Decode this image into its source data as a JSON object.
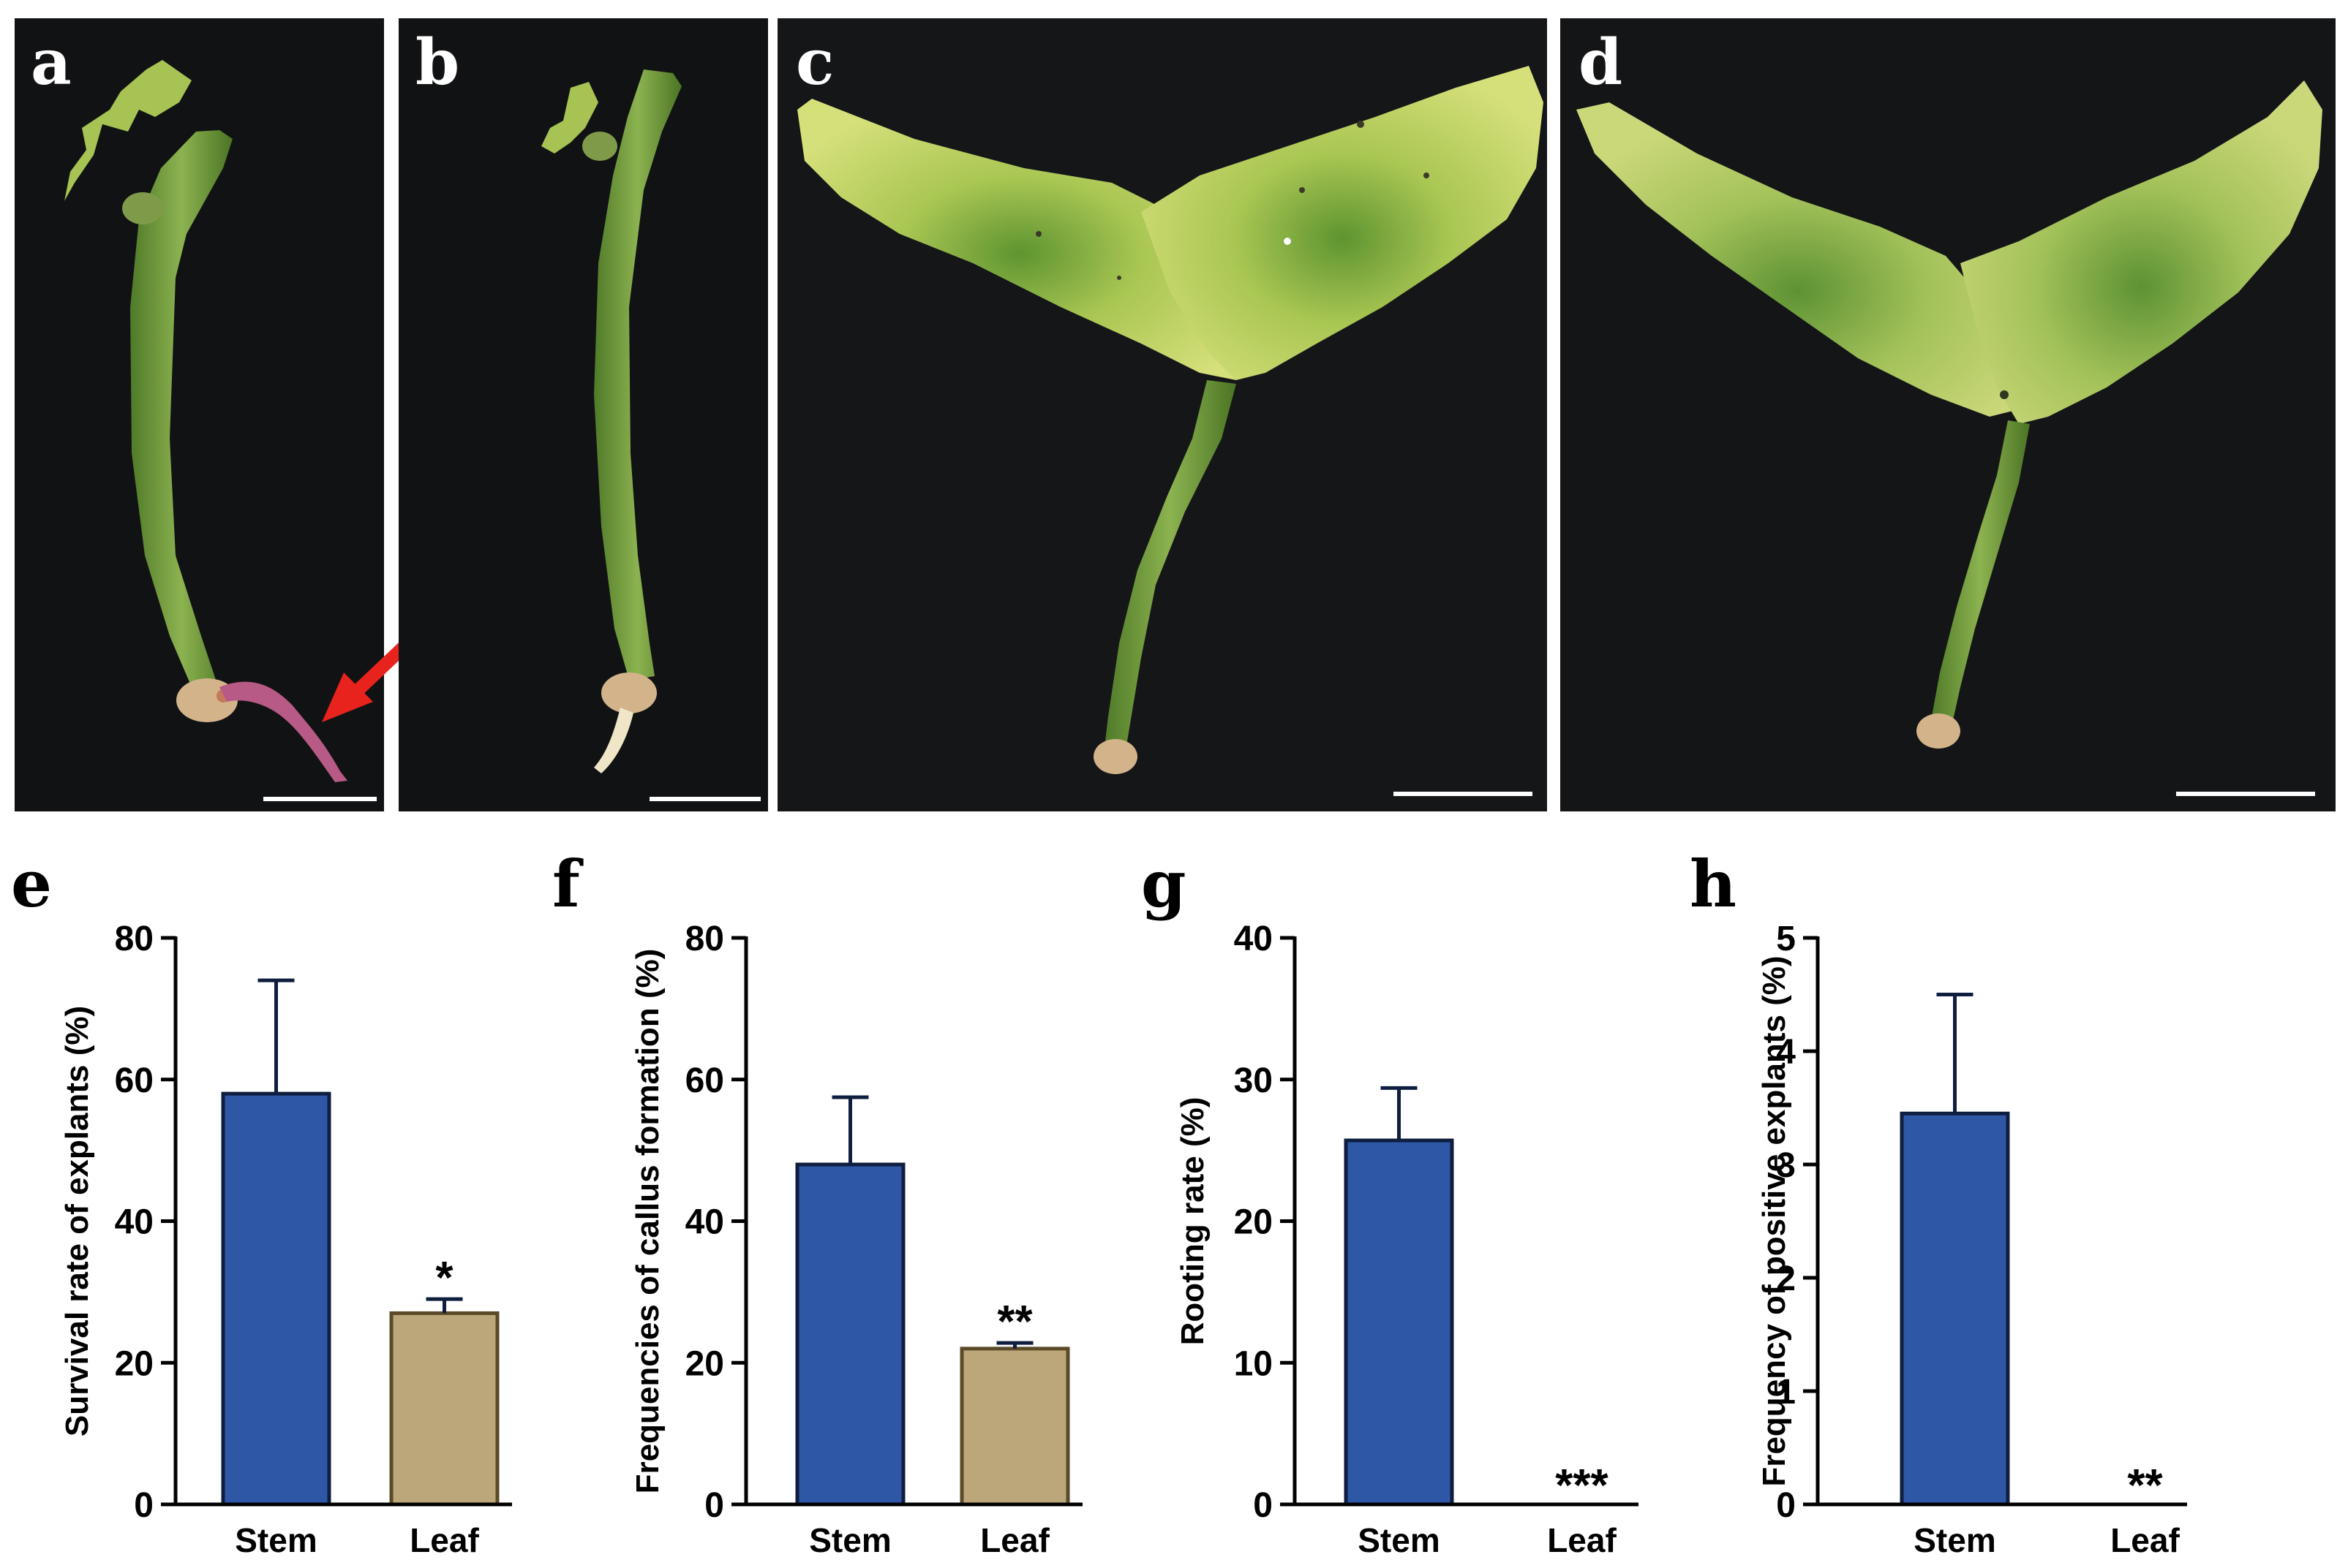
{
  "photo_panels": [
    {
      "letter": "a",
      "explant": "stem",
      "has_root": true,
      "root_color": "#b85a86",
      "arrow_color": "#e8221c"
    },
    {
      "letter": "b",
      "explant": "stem",
      "has_root": true,
      "root_color": "#efe6c8"
    },
    {
      "letter": "c",
      "explant": "leaf",
      "has_root": false
    },
    {
      "letter": "d",
      "explant": "leaf",
      "has_root": false
    }
  ],
  "colors": {
    "photo_background": "#111214",
    "stem_green": "#6f9a3a",
    "leaf_yellow_green": "#c9d86a",
    "leaf_center_green": "#6e9d34",
    "stem_bar": "#2e57a6",
    "leaf_bar": "#bca77a",
    "scale_bar": "#ffffff"
  },
  "chart_data": [
    {
      "panel": "e",
      "type": "bar",
      "categories": [
        "Stem",
        "Leaf"
      ],
      "values": [
        58,
        27
      ],
      "errors": [
        16,
        2
      ],
      "significance": [
        "",
        "*"
      ],
      "ylabel": "Survival rate of explants (%)",
      "ylim": [
        0,
        80
      ],
      "yticks": [
        0,
        20,
        40,
        60,
        80
      ]
    },
    {
      "panel": "f",
      "type": "bar",
      "categories": [
        "Stem",
        "Leaf"
      ],
      "values": [
        48,
        22
      ],
      "errors": [
        9.5,
        0.8
      ],
      "significance": [
        "",
        "**"
      ],
      "ylabel": "Frequencies of callus formation (%)",
      "ylim": [
        0,
        80
      ],
      "yticks": [
        0,
        20,
        40,
        60,
        80
      ]
    },
    {
      "panel": "g",
      "type": "bar",
      "categories": [
        "Stem",
        "Leaf"
      ],
      "values": [
        25.7,
        0
      ],
      "errors": [
        3.7,
        0
      ],
      "significance": [
        "",
        "***"
      ],
      "ylabel": "Rooting rate (%)",
      "ylim": [
        0,
        40
      ],
      "yticks": [
        0,
        10,
        20,
        30,
        40
      ]
    },
    {
      "panel": "h",
      "type": "bar",
      "categories": [
        "Stem",
        "Leaf"
      ],
      "values": [
        3.45,
        0
      ],
      "errors": [
        1.05,
        0
      ],
      "significance": [
        "",
        "**"
      ],
      "ylabel": "Frequency of positive explants (%)",
      "ylim": [
        0,
        5
      ],
      "yticks": [
        0,
        1,
        2,
        3,
        4,
        5
      ]
    }
  ]
}
